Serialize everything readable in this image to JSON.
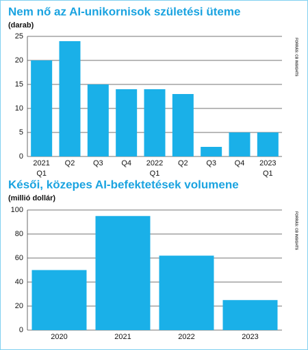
{
  "chart_data": [
    {
      "type": "bar",
      "title": "Nem nő az AI-unikornisok születési üteme",
      "subtitle": "(darab)",
      "source": "FORRÁS: CB INSIGHTS",
      "categories": [
        "2021\nQ1",
        "Q2",
        "Q3",
        "Q4",
        "2022\nQ1",
        "Q2",
        "Q3",
        "Q4",
        "2023\nQ1"
      ],
      "values": [
        20,
        24,
        15,
        14,
        14,
        13,
        2,
        5,
        5
      ],
      "color": "#1ab0e8",
      "ylim": [
        0,
        25
      ],
      "yticks": [
        0,
        5,
        10,
        15,
        20,
        25
      ],
      "grid": true
    },
    {
      "type": "bar",
      "title": "Késői, közepes AI-befektetések volumene",
      "subtitle": "(millió dollár)",
      "source": "FORRÁS: CB INSIGHTS",
      "categories": [
        "2020",
        "2021",
        "2022",
        "2023"
      ],
      "values": [
        50,
        95,
        62,
        25
      ],
      "color": "#1ab0e8",
      "ylim": [
        0,
        100
      ],
      "yticks": [
        0,
        20,
        40,
        60,
        80,
        100
      ],
      "grid": true
    }
  ]
}
